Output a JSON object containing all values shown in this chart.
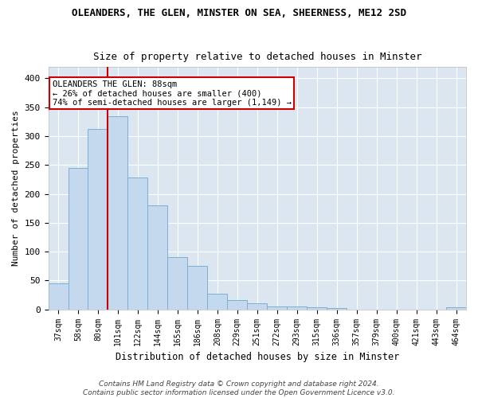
{
  "title": "OLEANDERS, THE GLEN, MINSTER ON SEA, SHEERNESS, ME12 2SD",
  "subtitle": "Size of property relative to detached houses in Minster",
  "xlabel": "Distribution of detached houses by size in Minster",
  "ylabel": "Number of detached properties",
  "categories": [
    "37sqm",
    "58sqm",
    "80sqm",
    "101sqm",
    "122sqm",
    "144sqm",
    "165sqm",
    "186sqm",
    "208sqm",
    "229sqm",
    "251sqm",
    "272sqm",
    "293sqm",
    "315sqm",
    "336sqm",
    "357sqm",
    "379sqm",
    "400sqm",
    "421sqm",
    "443sqm",
    "464sqm"
  ],
  "values": [
    45,
    245,
    312,
    335,
    228,
    180,
    90,
    75,
    27,
    16,
    10,
    5,
    5,
    4,
    3,
    0,
    0,
    0,
    0,
    0,
    4
  ],
  "bar_color": "#c5d9ee",
  "bar_edge_color": "#7aafd4",
  "vline_x_index": 2,
  "vline_color": "#cc0000",
  "annotation_text": "OLEANDERS THE GLEN: 88sqm\n← 26% of detached houses are smaller (400)\n74% of semi-detached houses are larger (1,149) →",
  "annotation_box_color": "#ffffff",
  "annotation_box_edge_color": "#cc0000",
  "ylim": [
    0,
    420
  ],
  "yticks": [
    0,
    50,
    100,
    150,
    200,
    250,
    300,
    350,
    400
  ],
  "bg_color": "#dce6f0",
  "grid_color": "#ffffff",
  "fig_bg_color": "#ffffff",
  "footer_line1": "Contains HM Land Registry data © Crown copyright and database right 2024.",
  "footer_line2": "Contains public sector information licensed under the Open Government Licence v3.0."
}
